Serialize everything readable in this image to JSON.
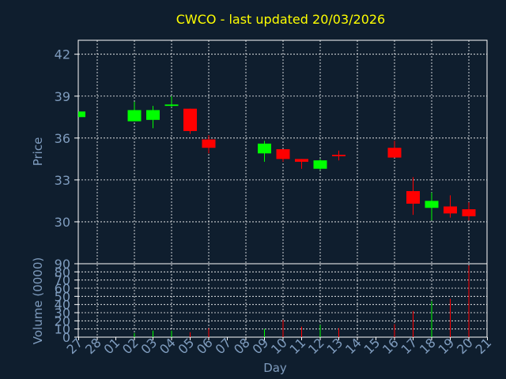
{
  "colors": {
    "background": "#0f1e2e",
    "up": "#00ff00",
    "down": "#ff0000",
    "title": "#ffff00",
    "axis_text": "#7f9cbe",
    "grid": "#ffffff"
  },
  "chart_data": {
    "type": "candlestick",
    "title": "CWCO - last updated 20/03/2026",
    "xlabel": "Day",
    "price_ylabel": "Price",
    "volume_ylabel": "Volume (0000)",
    "price_ylim": [
      27.0,
      43.0
    ],
    "price_ticks": [
      30,
      33,
      36,
      39,
      42
    ],
    "volume_ylim": [
      0,
      90
    ],
    "volume_ticks": [
      0,
      10,
      20,
      30,
      40,
      50,
      60,
      70,
      80,
      90
    ],
    "grid": true,
    "days": [
      "27",
      "28",
      "01",
      "02",
      "03",
      "04",
      "05",
      "06",
      "07",
      "08",
      "09",
      "10",
      "11",
      "12",
      "13",
      "14",
      "15",
      "16",
      "17",
      "18",
      "19",
      "20",
      "21"
    ],
    "candles": [
      {
        "day": "27",
        "open": 37.5,
        "close": 37.9,
        "high": 37.9,
        "low": 37.5,
        "volume": 0
      },
      {
        "day": "02",
        "open": 37.2,
        "close": 38.0,
        "high": 38.6,
        "low": 37.2,
        "volume": 5
      },
      {
        "day": "03",
        "open": 37.3,
        "close": 38.0,
        "high": 38.3,
        "low": 36.7,
        "volume": 8
      },
      {
        "day": "04",
        "open": 38.3,
        "close": 38.4,
        "high": 39.0,
        "low": 38.2,
        "volume": 8
      },
      {
        "day": "05",
        "open": 38.1,
        "close": 36.5,
        "high": 38.1,
        "low": 36.3,
        "volume": 6
      },
      {
        "day": "06",
        "open": 35.9,
        "close": 35.3,
        "high": 36.2,
        "low": 34.9,
        "volume": 11
      },
      {
        "day": "09",
        "open": 34.9,
        "close": 35.6,
        "high": 35.8,
        "low": 34.3,
        "volume": 10
      },
      {
        "day": "10",
        "open": 35.2,
        "close": 34.5,
        "high": 35.2,
        "low": 34.3,
        "volume": 21
      },
      {
        "day": "11",
        "open": 34.5,
        "close": 34.3,
        "high": 34.5,
        "low": 33.8,
        "volume": 13
      },
      {
        "day": "12",
        "open": 33.8,
        "close": 34.4,
        "high": 34.5,
        "low": 33.7,
        "volume": 15
      },
      {
        "day": "13",
        "open": 34.8,
        "close": 34.7,
        "high": 35.1,
        "low": 34.4,
        "volume": 11
      },
      {
        "day": "16",
        "open": 35.3,
        "close": 34.6,
        "high": 35.8,
        "low": 34.6,
        "volume": 16
      },
      {
        "day": "17",
        "open": 32.2,
        "close": 31.3,
        "high": 33.2,
        "low": 30.5,
        "volume": 32
      },
      {
        "day": "18",
        "open": 31.0,
        "close": 31.5,
        "high": 32.1,
        "low": 30.1,
        "volume": 44
      },
      {
        "day": "19",
        "open": 31.1,
        "close": 30.6,
        "high": 31.9,
        "low": 30.3,
        "volume": 47
      },
      {
        "day": "20",
        "open": 30.9,
        "close": 30.4,
        "high": 31.4,
        "low": 30.1,
        "volume": 88
      }
    ]
  }
}
